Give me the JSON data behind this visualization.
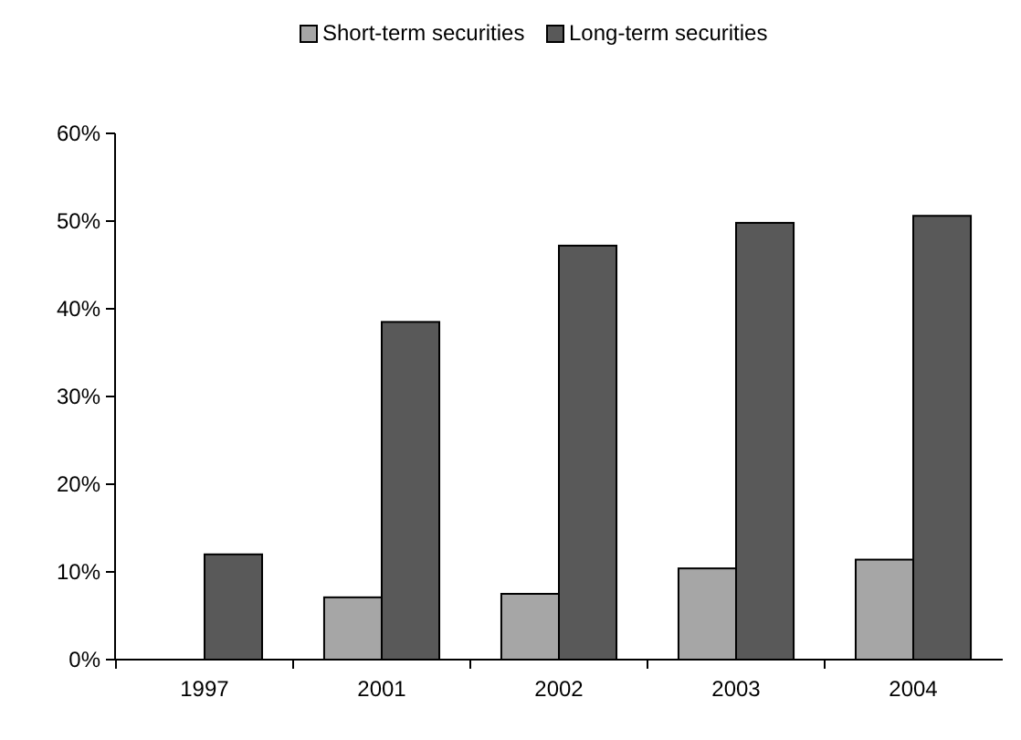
{
  "chart_data": {
    "type": "bar",
    "categories": [
      "1997",
      "2001",
      "2002",
      "2003",
      "2004"
    ],
    "series": [
      {
        "name": "Short-term securities",
        "color": "#a6a6a6",
        "values": [
          null,
          7.1,
          7.5,
          10.4,
          11.4
        ]
      },
      {
        "name": "Long-term securities",
        "color": "#595959",
        "values": [
          12,
          38.5,
          47.2,
          49.8,
          50.6
        ]
      }
    ],
    "ylim": [
      0,
      60
    ],
    "yticks": [
      {
        "value": 0,
        "label": "0%"
      },
      {
        "value": 10,
        "label": "10%"
      },
      {
        "value": 20,
        "label": "20%"
      },
      {
        "value": 30,
        "label": "30%"
      },
      {
        "value": 40,
        "label": "40%"
      },
      {
        "value": 50,
        "label": "50%"
      },
      {
        "value": 60,
        "label": "60%"
      }
    ],
    "legend": "top",
    "grid": false
  }
}
